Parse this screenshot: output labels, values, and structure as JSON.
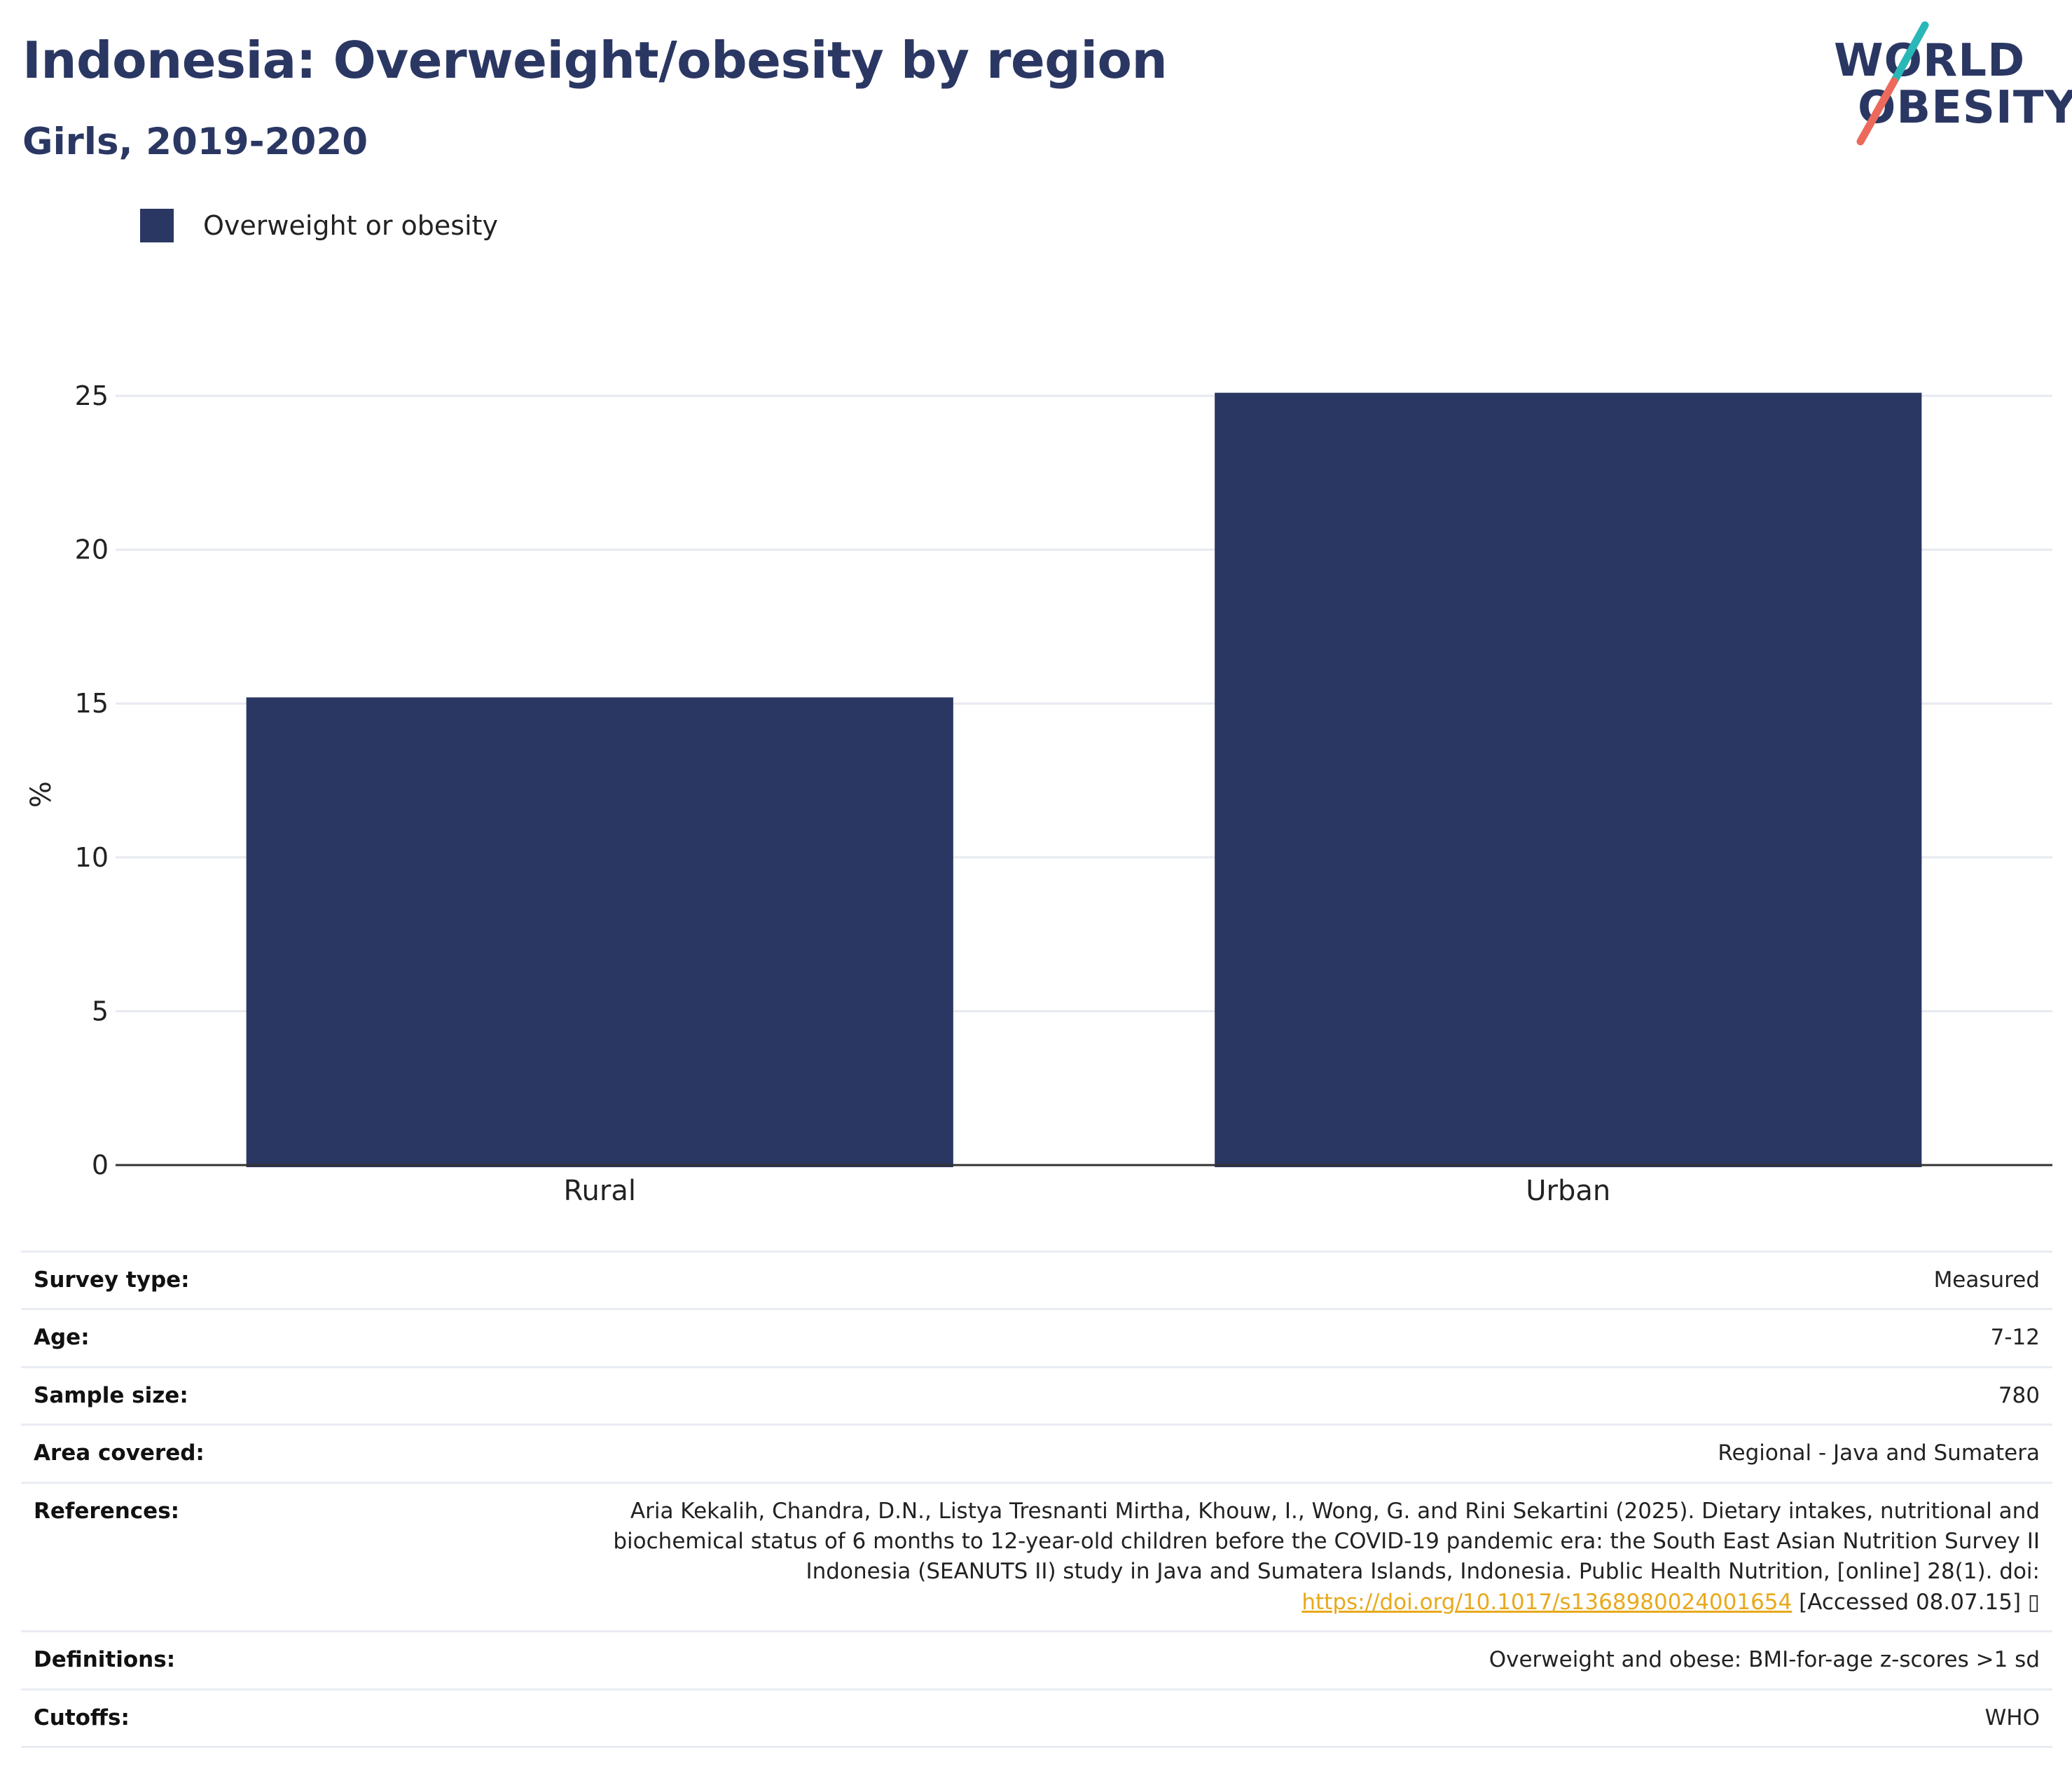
{
  "header": {
    "title": "Indonesia: Overweight/obesity by region",
    "subtitle": "Girls, 2019-2020"
  },
  "logo": {
    "line1": "WORLD",
    "line2": "OBESITY",
    "colors": {
      "text": "#2b3763",
      "slash_top": "#2ab7b7",
      "slash_bottom": "#ec6a5c"
    }
  },
  "legend": {
    "items": [
      {
        "label": "Overweight or obesity",
        "color": "#2b3763"
      }
    ]
  },
  "chart_data": {
    "type": "bar",
    "categories": [
      "Rural",
      "Urban"
    ],
    "series": [
      {
        "name": "Overweight or obesity",
        "values": [
          15.2,
          25.1
        ],
        "color": "#2b3763"
      }
    ],
    "xlabel": "",
    "ylabel": "%",
    "ylim": [
      0,
      25
    ],
    "yticks": [
      0,
      5,
      10,
      15,
      20,
      25
    ],
    "grid": true,
    "legend_position": "top-left"
  },
  "info": {
    "rows": [
      {
        "key": "Survey type:",
        "value": "Measured"
      },
      {
        "key": "Age:",
        "value": "7-12"
      },
      {
        "key": "Sample size:",
        "value": "780"
      },
      {
        "key": "Area covered:",
        "value": "Regional - Java and Sumatera"
      }
    ],
    "references": {
      "key": "References:",
      "line1": "Aria Kekalih, Chandra, D.N., Listya Tresnanti Mirtha, Khouw, I., Wong, G. and Rini Sekartini (2025). Dietary intakes, nutritional and",
      "line2": "biochemical status of 6 months to 12-year-old children before the COVID-19 pandemic era: the South East Asian Nutrition Survey II",
      "line3": "Indonesia (SEANUTS II) study in Java and Sumatera Islands, Indonesia. Public Health Nutrition, [online] 28(1). doi:",
      "link": "https://doi.org/10.1017/s1368980024001654",
      "suffix": " [Accessed 08.07.15] ▯"
    },
    "rows_after": [
      {
        "key": "Definitions:",
        "value": "Overweight and obese: BMI-for-age z-scores >1 sd"
      },
      {
        "key": "Cutoffs:",
        "value": "WHO"
      }
    ]
  }
}
